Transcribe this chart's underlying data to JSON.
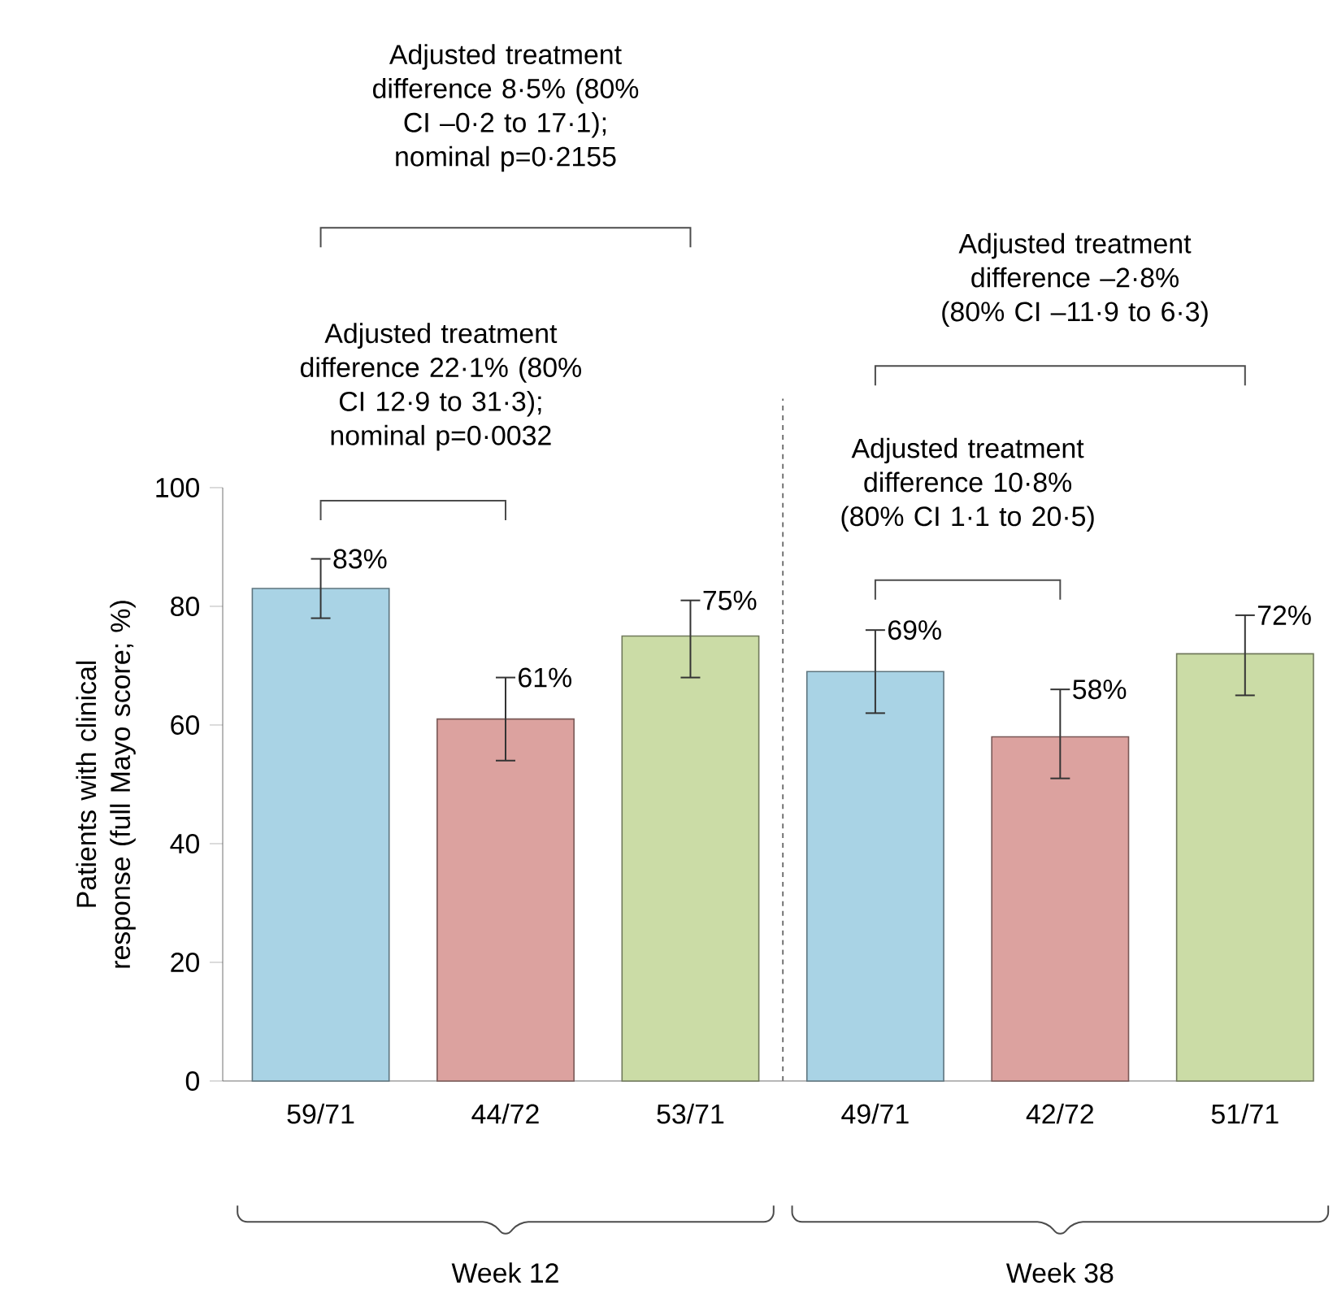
{
  "chart_data": {
    "type": "bar",
    "ylabel": "Patients with clinical response (full Mayo score; %)",
    "categories": [
      "59/71",
      "44/72",
      "53/71",
      "49/71",
      "42/72",
      "51/71"
    ],
    "values": [
      83,
      61,
      75,
      69,
      58,
      72
    ],
    "colors": [
      "#a9d3e5",
      "#dca29f",
      "#cbdca6",
      "#a9d3e5",
      "#dca29f",
      "#cbdca6"
    ],
    "errors": [
      [
        78,
        88
      ],
      [
        54,
        68
      ],
      [
        68,
        81
      ],
      [
        62,
        76
      ],
      [
        51,
        66
      ],
      [
        65,
        78.5
      ]
    ],
    "value_labels": [
      "83%",
      "61%",
      "75%",
      "69%",
      "58%",
      "72%"
    ],
    "ylim": [
      0,
      100
    ],
    "yticks": [
      0,
      20,
      40,
      60,
      80,
      100
    ],
    "annotations": [
      "Adjusted treatment difference 8·5% (80% CI –0·2 to 17·1); nominal p=0·2155",
      "Adjusted treatment difference 22·1% (80% CI 12·9 to 31·3); nominal p=0·0032",
      "Adjusted treatment difference –2·8% (80% CI –11·9 to 6·3)",
      "Adjusted treatment difference 10·8% (80% CI 1·1 to 20·5)",
      "Week 12",
      "Week 38"
    ]
  }
}
